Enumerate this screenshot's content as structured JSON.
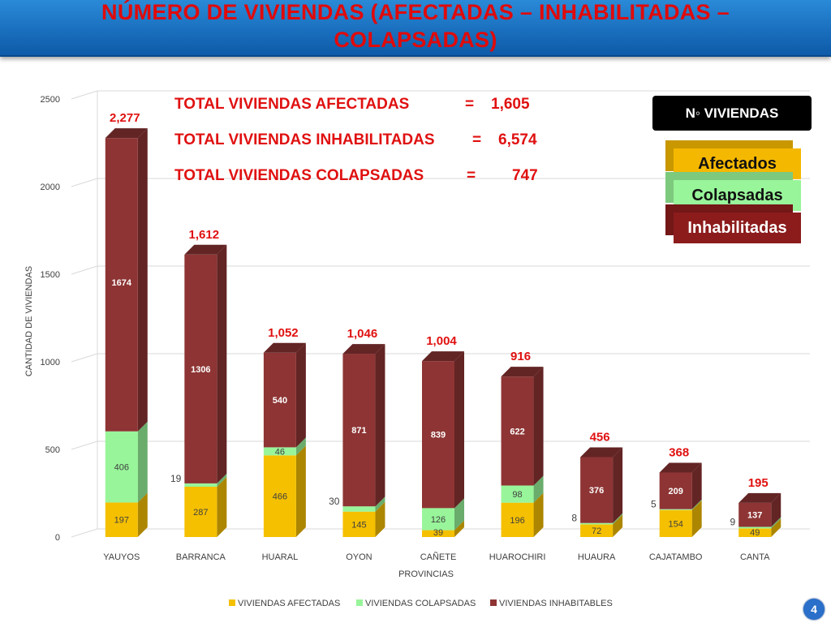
{
  "title": "NÚMERO DE VIVIENDAS (AFECTADAS – INHABILITADAS – COLAPSADAS)",
  "totals": [
    {
      "label": "TOTAL VIVIENDAS AFECTADAS",
      "eq": "=",
      "value": "1,605"
    },
    {
      "label": "TOTAL VIVIENDAS INHABILITADAS",
      "eq": "=",
      "value": "6,574"
    },
    {
      "label": "TOTAL VIVIENDAS COLAPSADAS",
      "eq": "=",
      "value": "747"
    }
  ],
  "legend_box": {
    "title": "N◦ VIVIENDAS",
    "items": [
      {
        "label": "Afectados",
        "color": "#f5b800"
      },
      {
        "label": "Colapsadas",
        "color": "#98f59a"
      },
      {
        "label": "Inhabilitadas",
        "color": "#8c1c1c"
      }
    ]
  },
  "page_number": "4",
  "chart_data": {
    "type": "bar",
    "stacked": true,
    "categories": [
      "YAUYOS",
      "BARRANCA",
      "HUARAL",
      "OYON",
      "CAÑETE",
      "HUAROCHIRI",
      "HUAURA",
      "CAJATAMBO",
      "CANTA"
    ],
    "series": [
      {
        "name": "VIVIENDAS AFECTADAS",
        "color": "#f5c000",
        "values": [
          197,
          287,
          466,
          145,
          39,
          196,
          72,
          154,
          49
        ]
      },
      {
        "name": "VIVIENDAS COLAPSADAS",
        "color": "#98f59a",
        "values": [
          406,
          19,
          46,
          30,
          126,
          98,
          8,
          5,
          9
        ]
      },
      {
        "name": "VIVIENDAS INHABITABLES",
        "color": "#8e3434",
        "values": [
          1674,
          1306,
          540,
          871,
          839,
          622,
          376,
          209,
          137
        ]
      }
    ],
    "totals_labels": [
      "2,277",
      "1,612",
      "1,052",
      "1,046",
      "1,004",
      "916",
      "456",
      "368",
      "195"
    ],
    "xlabel": "PROVINCIAS",
    "ylabel": "CANTIDAD DE VIVIENDAS",
    "ylim": [
      0,
      2500
    ],
    "yticks": [
      0,
      500,
      1000,
      1500,
      2000,
      2500
    ],
    "grid": true,
    "legend_position": "bottom"
  }
}
